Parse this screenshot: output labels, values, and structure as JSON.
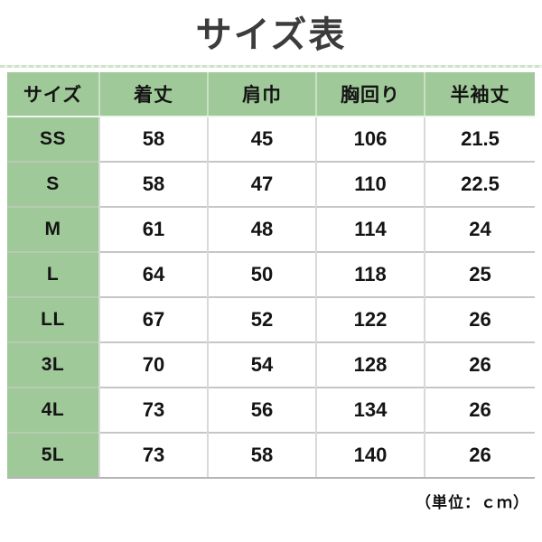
{
  "title": "サイズ表",
  "table": {
    "headers": [
      "サイズ",
      "着丈",
      "肩巾",
      "胸回り",
      "半袖丈"
    ],
    "rows": [
      {
        "size": "SS",
        "values": [
          "58",
          "45",
          "106",
          "21.5"
        ]
      },
      {
        "size": "S",
        "values": [
          "58",
          "47",
          "110",
          "22.5"
        ]
      },
      {
        "size": "M",
        "values": [
          "61",
          "48",
          "114",
          "24"
        ]
      },
      {
        "size": "L",
        "values": [
          "64",
          "50",
          "118",
          "25"
        ]
      },
      {
        "size": "LL",
        "values": [
          "67",
          "52",
          "122",
          "26"
        ]
      },
      {
        "size": "3L",
        "values": [
          "70",
          "54",
          "128",
          "26"
        ]
      },
      {
        "size": "4L",
        "values": [
          "73",
          "56",
          "134",
          "26"
        ]
      },
      {
        "size": "5L",
        "values": [
          "73",
          "58",
          "140",
          "26"
        ]
      }
    ]
  },
  "footer": {
    "unit_note": "（単位：ｃｍ）"
  },
  "colors": {
    "header_green": "#9fc998",
    "row_border_gray": "#c6c6c6",
    "cell_border_light": "#d9d9d9",
    "title_gray": "#3c3c3c"
  }
}
